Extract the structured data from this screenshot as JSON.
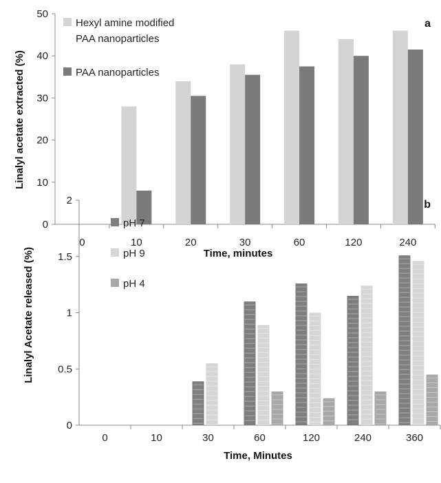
{
  "chart_data": [
    {
      "id": "a",
      "type": "bar",
      "panel_label": "a",
      "categories": [
        "0",
        "10",
        "20",
        "30",
        "60",
        "120",
        "240"
      ],
      "series": [
        {
          "name": "Hexyl amine modified PAA nanoparticles",
          "name_lines": [
            "Hexyl amine modified",
            "PAA nanoparticles"
          ],
          "color": "#d4d4d4",
          "values": [
            0,
            28,
            34,
            38,
            46,
            44,
            46
          ]
        },
        {
          "name": "PAA nanoparticles",
          "name_lines": [
            "PAA nanoparticles"
          ],
          "color": "#7a7a7a",
          "values": [
            0,
            8,
            30.5,
            35.5,
            37.5,
            40,
            41.5
          ]
        }
      ],
      "xlabel": "Time, minutes",
      "ylabel": "Linalyl acetate extracted (%)",
      "ylim": [
        0,
        50
      ],
      "yticks": [
        "0",
        "10",
        "20",
        "30",
        "40",
        "50"
      ],
      "grid": false,
      "legend_position": "top-left"
    },
    {
      "id": "b",
      "type": "bar",
      "panel_label": "b",
      "categories": [
        "0",
        "10",
        "30",
        "60",
        "120",
        "240",
        "360"
      ],
      "series": [
        {
          "name": "pH 7",
          "name_lines": [
            "pH 7"
          ],
          "color": "#7e7e7e",
          "values": [
            0,
            0,
            0.39,
            1.1,
            1.26,
            1.15,
            1.51
          ]
        },
        {
          "name": "pH 9",
          "name_lines": [
            "pH 9"
          ],
          "color": "#d6d6d6",
          "values": [
            0,
            0,
            0.55,
            0.89,
            1.0,
            1.24,
            1.46
          ]
        },
        {
          "name": "pH 4",
          "name_lines": [
            "pH 4"
          ],
          "color": "#a8a8a8",
          "values": [
            0,
            0,
            0,
            0.3,
            0.24,
            0.3,
            0.45
          ]
        }
      ],
      "xlabel": "Time, Minutes",
      "ylabel": "Linalyl Acetate released (%)",
      "ylim": [
        0,
        2
      ],
      "yticks": [
        "0",
        "0.5",
        "1",
        "1.5",
        "2"
      ],
      "grid": false,
      "legend_position": "top-left"
    }
  ]
}
